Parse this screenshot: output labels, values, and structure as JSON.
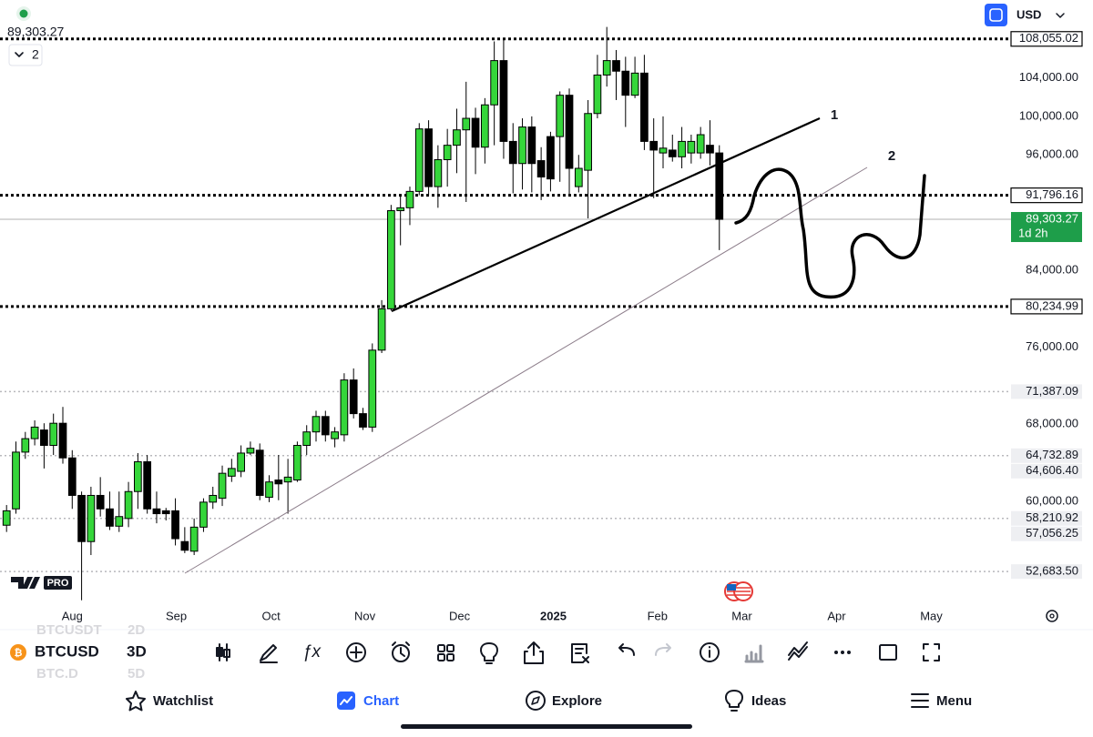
{
  "header": {
    "price": "89,303.27",
    "indicator_count": "2",
    "currency": "USD"
  },
  "chart_data": {
    "type": "candlestick",
    "open": [
      57500,
      59200,
      65100,
      66500,
      67400,
      65800,
      68100,
      64500,
      60600,
      55800,
      60600,
      59200,
      57400,
      58200,
      61000,
      64100,
      59200,
      59000,
      59000,
      55800,
      54800,
      57300,
      59900,
      60300,
      62600,
      63100,
      65000,
      65300,
      60400,
      62200,
      62000,
      62200,
      65800,
      67200,
      68800,
      66500,
      66900,
      72600,
      69100,
      67700,
      75700,
      80000,
      90200,
      90500,
      92200,
      98700,
      92700,
      95500,
      97000,
      98600,
      99800,
      96800,
      101200,
      105800,
      97400,
      95100,
      98900,
      95400,
      97900,
      97900,
      102200,
      92700,
      94400,
      100300,
      104300,
      105800,
      104700,
      102200,
      104500,
      97400,
      96200,
      96500,
      95800,
      96200,
      96200,
      97000,
      96200
    ],
    "high": [
      59600,
      66200,
      67200,
      68400,
      68100,
      69100,
      69800,
      65300,
      61000,
      61500,
      62500,
      61000,
      61000,
      62000,
      65000,
      64800,
      61000,
      59300,
      60300,
      57300,
      58200,
      60300,
      61500,
      63700,
      64400,
      65800,
      66200,
      66000,
      62700,
      64800,
      64400,
      66200,
      67900,
      69400,
      69400,
      67700,
      73300,
      73800,
      69700,
      76400,
      80900,
      90800,
      91800,
      92700,
      99300,
      99600,
      97000,
      98700,
      100800,
      103600,
      100900,
      101900,
      107800,
      108055,
      99300,
      99800,
      100000,
      96800,
      98400,
      102600,
      102900,
      96000,
      101700,
      106400,
      109300,
      106900,
      106200,
      106200,
      106400,
      99800,
      100000,
      98100,
      98900,
      98100,
      98900,
      99600,
      97000
    ],
    "low": [
      56800,
      58700,
      64400,
      65800,
      63400,
      64800,
      63900,
      59200,
      49700,
      54400,
      58400,
      57000,
      56800,
      57300,
      59200,
      58700,
      57700,
      58000,
      55400,
      54600,
      54400,
      56800,
      59200,
      59500,
      62000,
      62500,
      64800,
      60100,
      59900,
      60100,
      58700,
      62000,
      64800,
      66200,
      66200,
      65600,
      66200,
      68600,
      67400,
      67200,
      75400,
      79800,
      86600,
      88700,
      91800,
      91800,
      90500,
      92700,
      94100,
      91100,
      94000,
      95100,
      97000,
      95600,
      92000,
      92400,
      92100,
      91300,
      92200,
      93200,
      91800,
      92100,
      89400,
      99800,
      103100,
      101700,
      98900,
      101900,
      96500,
      91500,
      94600,
      95300,
      94600,
      95100,
      95600,
      94900,
      86100
    ],
    "close": [
      59000,
      65100,
      66500,
      67700,
      65800,
      68100,
      64500,
      60600,
      55800,
      60600,
      59200,
      57400,
      58400,
      61000,
      64100,
      59200,
      58700,
      58700,
      56100,
      54900,
      57300,
      59900,
      60600,
      62900,
      63400,
      65000,
      65500,
      60600,
      62000,
      61800,
      62500,
      65800,
      67200,
      68800,
      66900,
      67200,
      72600,
      69100,
      67700,
      75700,
      80000,
      90200,
      90500,
      92200,
      98700,
      92700,
      95500,
      97000,
      98600,
      99800,
      96800,
      101200,
      105800,
      97400,
      95100,
      98900,
      95100,
      93700,
      93500,
      102200,
      94600,
      94600,
      100300,
      104300,
      105800,
      104700,
      102200,
      104500,
      97400,
      96500,
      96700,
      95800,
      97400,
      97400,
      98100,
      96200,
      89300
    ],
    "up_color": "#35d63a",
    "down_color": "#000000",
    "xlim": [
      -0.7,
      107.1
    ],
    "xticks": [
      {
        "value": 7,
        "label": "Aug"
      },
      {
        "value": 18.1,
        "label": "Sep"
      },
      {
        "value": 28.2,
        "label": "Oct"
      },
      {
        "value": 38.2,
        "label": "Nov"
      },
      {
        "value": 48.3,
        "label": "Dec"
      },
      {
        "value": 58.3,
        "label": "2025"
      },
      {
        "value": 69.4,
        "label": "Feb"
      },
      {
        "value": 78.4,
        "label": "Mar"
      },
      {
        "value": 88.5,
        "label": "Apr"
      },
      {
        "value": 98.6,
        "label": "May"
      }
    ],
    "ylim": [
      49200,
      112100
    ],
    "yticks": [
      {
        "value": 104000,
        "label": "104,000.00"
      },
      {
        "value": 100000,
        "label": "100,000.00"
      },
      {
        "value": 96000,
        "label": "96,000.00"
      },
      {
        "value": 84000,
        "label": "84,000.00"
      },
      {
        "value": 76000,
        "label": "76,000.00"
      },
      {
        "value": 68000,
        "label": "68,000.00"
      },
      {
        "value": 60000,
        "label": "60,000.00"
      }
    ],
    "price_levels": [
      {
        "value": 108055.02,
        "label": "108,055.02",
        "style": "bold"
      },
      {
        "value": 91796.16,
        "label": "91,796.16",
        "style": "bold"
      },
      {
        "value": 80234.99,
        "label": "80,234.99",
        "style": "bold"
      },
      {
        "value": 71387.09,
        "label": "71,387.09",
        "style": "light"
      },
      {
        "value": 64732.89,
        "label": "64,732.89",
        "style": "light"
      },
      {
        "value": 64606.4,
        "label": "64,606.40",
        "style": "label"
      },
      {
        "value": 58210.92,
        "label": "58,210.92",
        "style": "light"
      },
      {
        "value": 57056.25,
        "label": "57,056.25",
        "style": "label"
      },
      {
        "value": 52683.5,
        "label": "52,683.50",
        "style": "light"
      }
    ],
    "last_price": {
      "value": 89303.27,
      "label": "89,303.27",
      "countdown": "1d 2h",
      "color": "#1e9e4a"
    },
    "annotations": [
      "1",
      "2"
    ],
    "watermark": "PRO"
  },
  "toolbar": {
    "symbol": "BTCUSD",
    "interval": "3D",
    "symbol_above": "BTCUSDT",
    "interval_above": "2D",
    "symbol_below": "BTC.D",
    "interval_below": "5D"
  },
  "nav": [
    "Watchlist",
    "Chart",
    "Explore",
    "Ideas",
    "Menu"
  ]
}
